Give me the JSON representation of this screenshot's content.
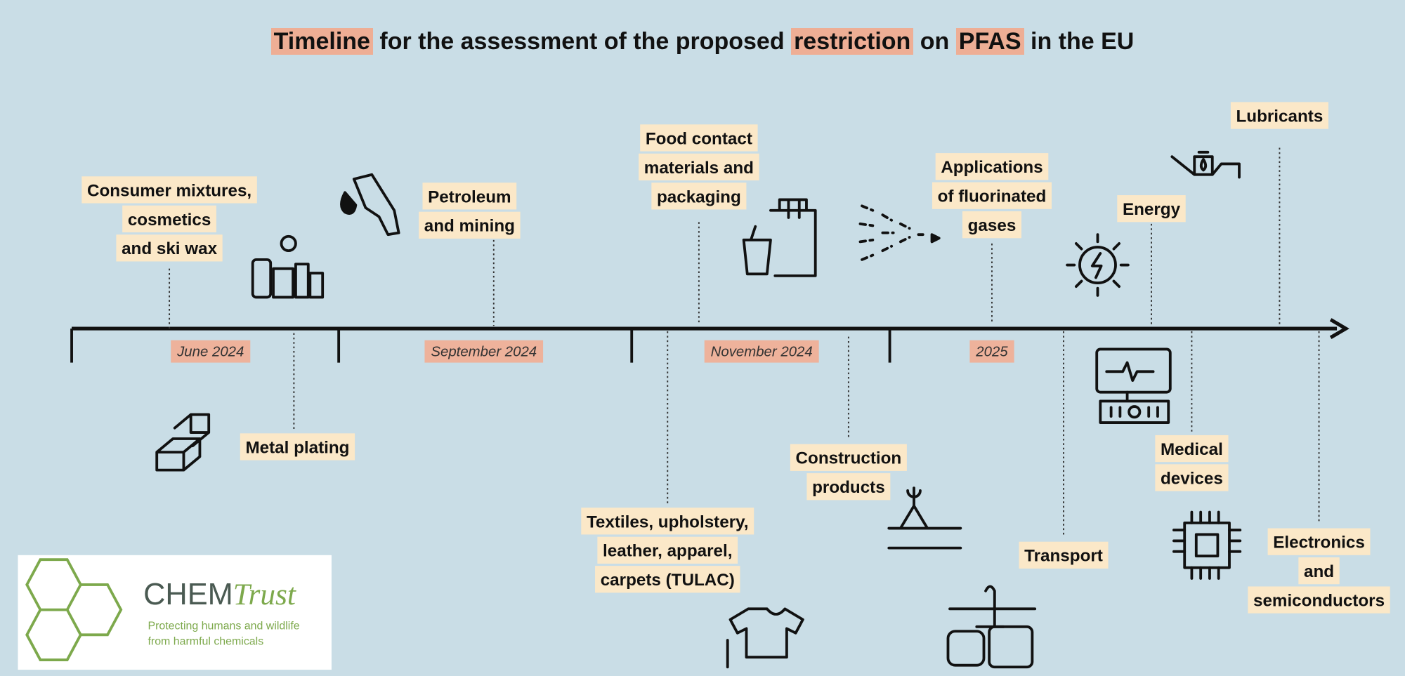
{
  "title": {
    "segments": [
      {
        "text": "Timeline",
        "highlight": true
      },
      {
        "text": " for the assessment of the proposed ",
        "highlight": false
      },
      {
        "text": "restriction",
        "highlight": true
      },
      {
        "text": " on ",
        "highlight": false
      },
      {
        "text": "PFAS",
        "highlight": true
      },
      {
        "text": " in the EU",
        "highlight": false
      }
    ]
  },
  "timeline": {
    "periods": [
      "June 2024",
      "September 2024",
      "November 2024",
      "2025"
    ]
  },
  "sectors": {
    "above": [
      {
        "lines": [
          "Consumer mixtures,",
          "cosmetics",
          "and ski wax"
        ]
      },
      {
        "lines": [
          "Petroleum",
          "and mining"
        ]
      },
      {
        "lines": [
          "Food contact",
          "materials and",
          "packaging"
        ]
      },
      {
        "lines": [
          "Applications",
          "of fluorinated",
          "gases"
        ]
      },
      {
        "lines": [
          "Energy"
        ]
      },
      {
        "lines": [
          "Lubricants"
        ]
      }
    ],
    "below": [
      {
        "lines": [
          "Metal plating"
        ]
      },
      {
        "lines": [
          "Textiles, upholstery,",
          "leather, apparel,",
          "carpets (TULAC)"
        ]
      },
      {
        "lines": [
          "Construction",
          "products"
        ]
      },
      {
        "lines": [
          "Transport"
        ]
      },
      {
        "lines": [
          "Medical",
          "devices"
        ]
      },
      {
        "lines": [
          "Electronics",
          "and",
          "semiconductors"
        ]
      }
    ]
  },
  "logo": {
    "name": "CHEM",
    "name_accent": "Trust",
    "tagline": [
      "Protecting humans and wildlife",
      "from harmful chemicals"
    ]
  }
}
